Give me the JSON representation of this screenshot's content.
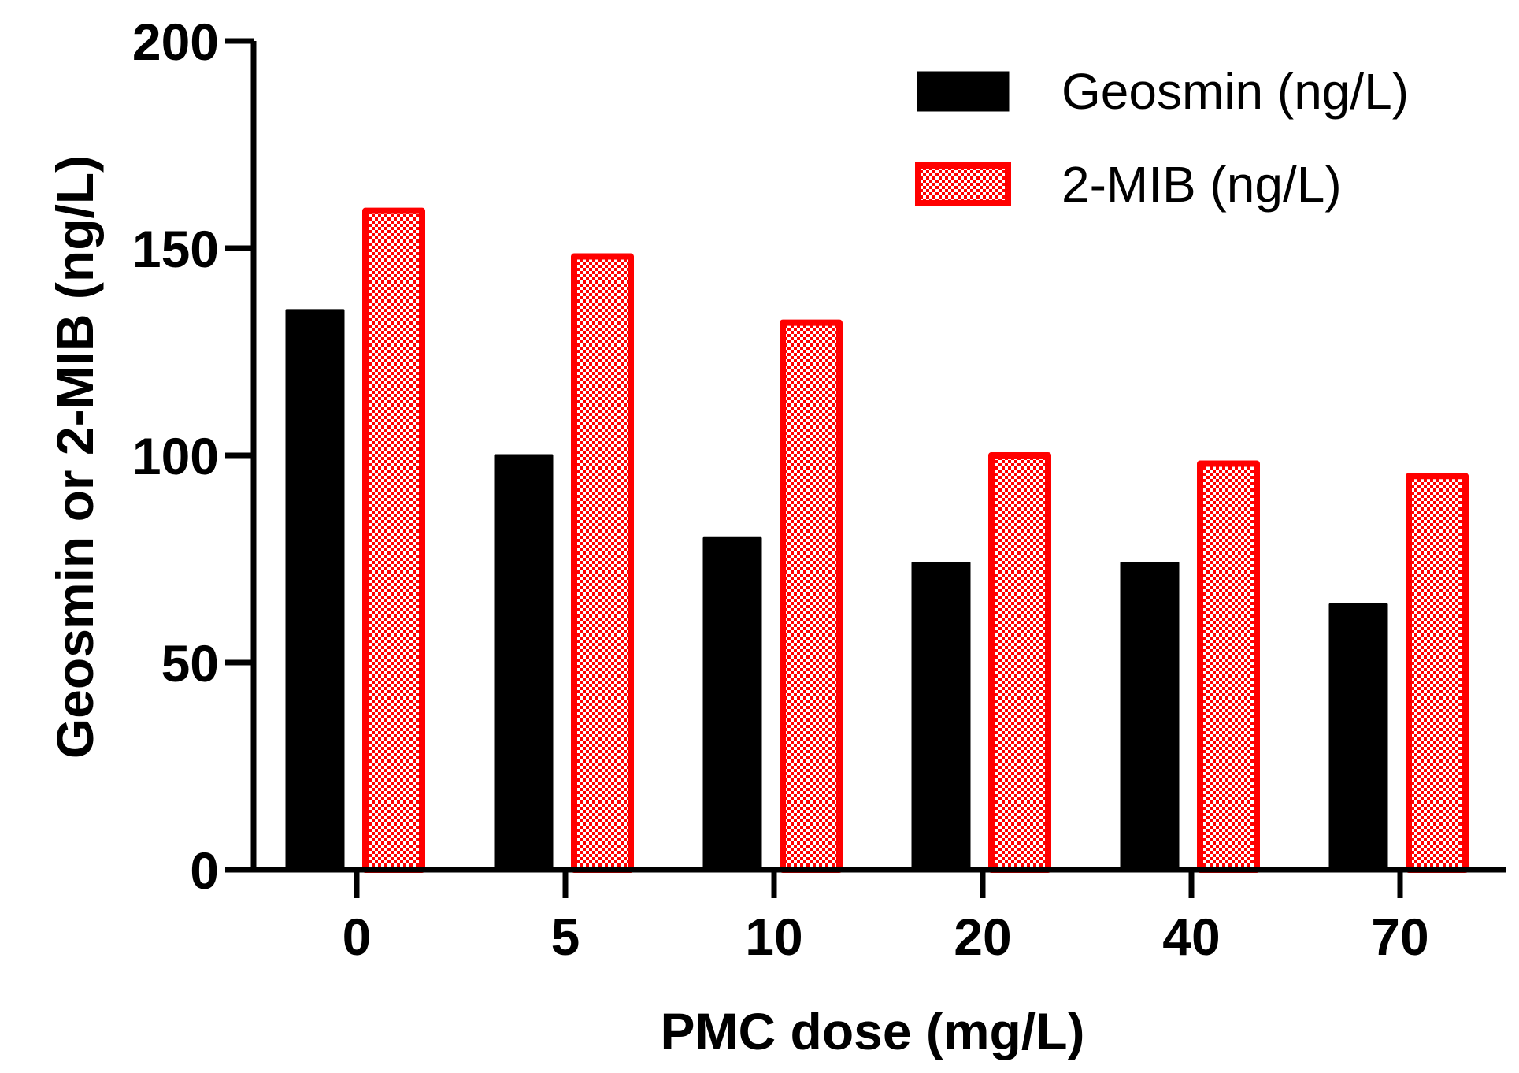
{
  "chart_data": {
    "type": "bar",
    "title": "",
    "xlabel": "PMC dose (mg/L)",
    "ylabel": "Geosmin or 2-MIB (ng/L)",
    "categories": [
      "0",
      "5",
      "10",
      "20",
      "40",
      "70"
    ],
    "ylim": [
      0,
      200
    ],
    "yticks": [
      "0",
      "50",
      "100",
      "150",
      "200"
    ],
    "grid": false,
    "legend_position": "top-right",
    "series": [
      {
        "name": "Geosmin (ng/L)",
        "values": [
          135,
          100,
          80,
          74,
          74,
          64
        ],
        "fill": "#000000",
        "stroke": "#000000",
        "pattern": "solid"
      },
      {
        "name": "2-MIB (ng/L)",
        "values": [
          159,
          148,
          132,
          100,
          98,
          95
        ],
        "fill": "#ff0000",
        "stroke": "#ff0000",
        "pattern": "checker"
      }
    ]
  }
}
